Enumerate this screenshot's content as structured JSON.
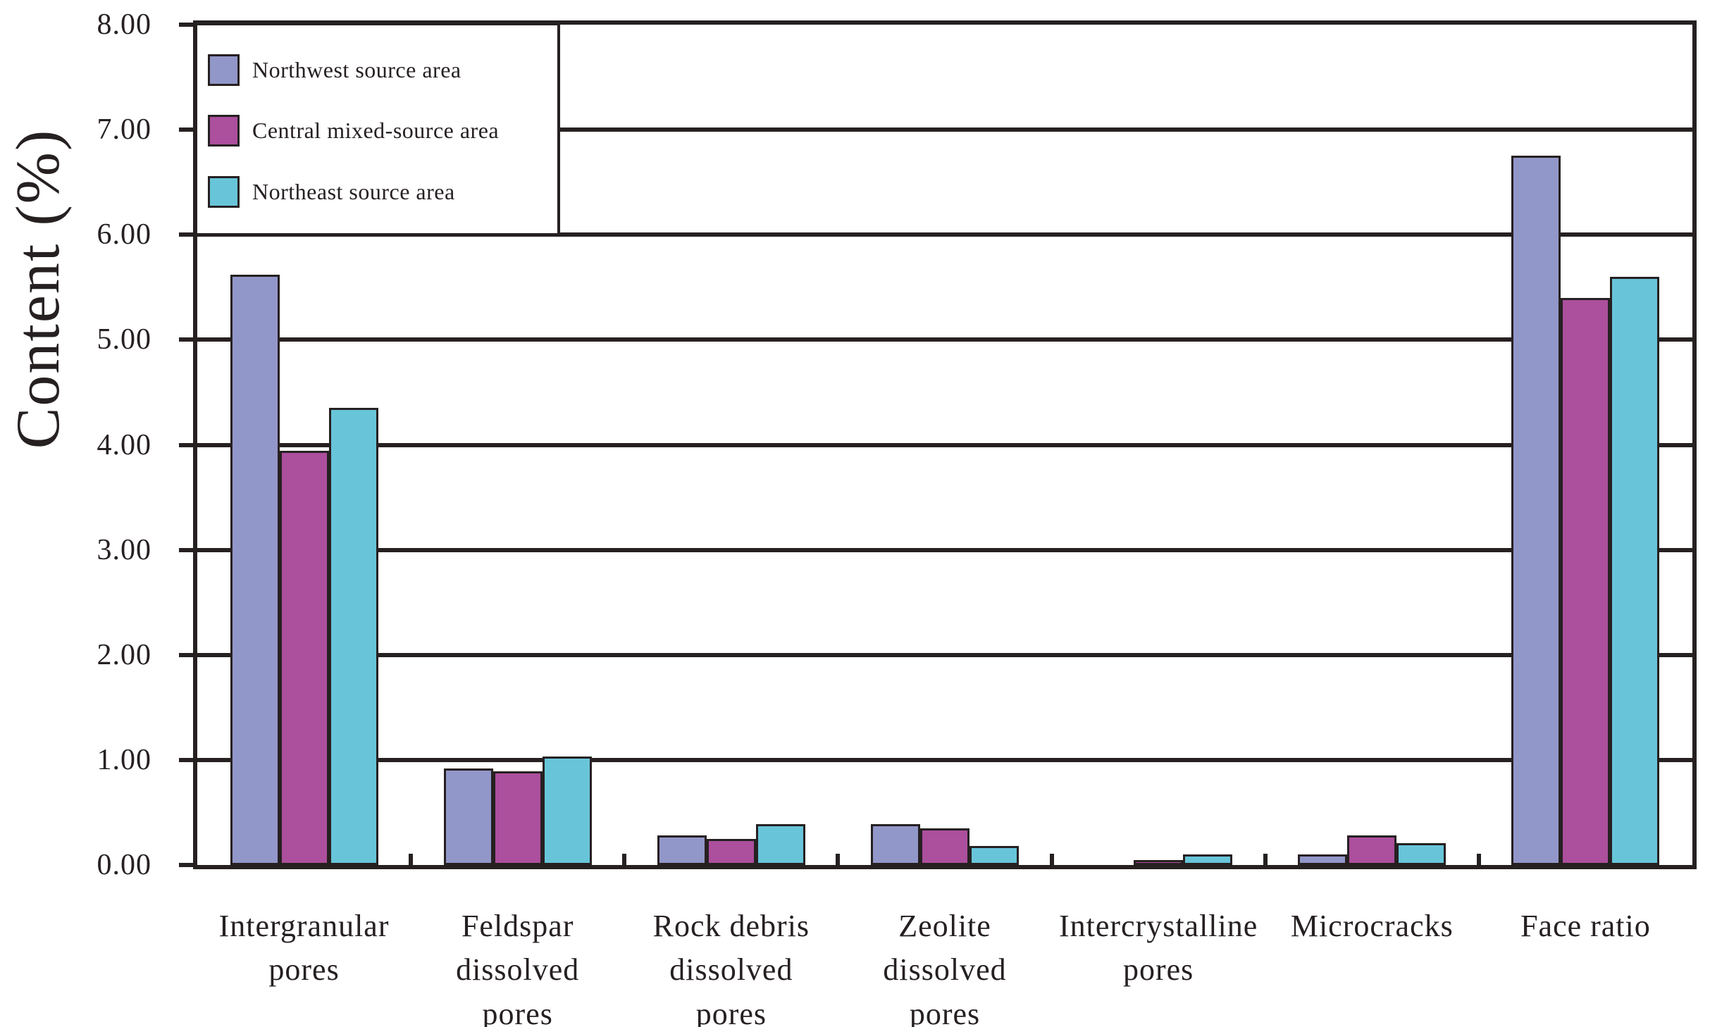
{
  "chart_data": {
    "type": "bar",
    "title": "",
    "ylabel": "Content (%)",
    "xlabel": "",
    "ylim": [
      0,
      8
    ],
    "ytick_step": 1,
    "ytick_labels": [
      "0.00",
      "1.00",
      "2.00",
      "3.00",
      "4.00",
      "5.00",
      "6.00",
      "7.00",
      "8.00"
    ],
    "grid": "horizontal",
    "legend_position": "top-left-inside",
    "categories": [
      "Intergranular\npores",
      "Feldspar\ndissolved\npores",
      "Rock debris\ndissolved\npores",
      "Zeolite\ndissolved\npores",
      "Intercrystalline\npores",
      "Microcracks",
      "Face ratio"
    ],
    "series": [
      {
        "name": "Northwest source area",
        "color": "#9297C9",
        "values": [
          5.62,
          0.92,
          0.28,
          0.39,
          0.0,
          0.1,
          6.75
        ]
      },
      {
        "name": "Central mixed-source area",
        "color": "#AC4F9D",
        "values": [
          3.94,
          0.89,
          0.25,
          0.35,
          0.05,
          0.28,
          5.4
        ]
      },
      {
        "name": "Northeast source area",
        "color": "#68C5D9",
        "values": [
          4.35,
          1.03,
          0.39,
          0.18,
          0.1,
          0.21,
          5.6
        ]
      }
    ]
  },
  "colors": {
    "axis_and_text": "#262021",
    "background": "#FFFFFF"
  }
}
